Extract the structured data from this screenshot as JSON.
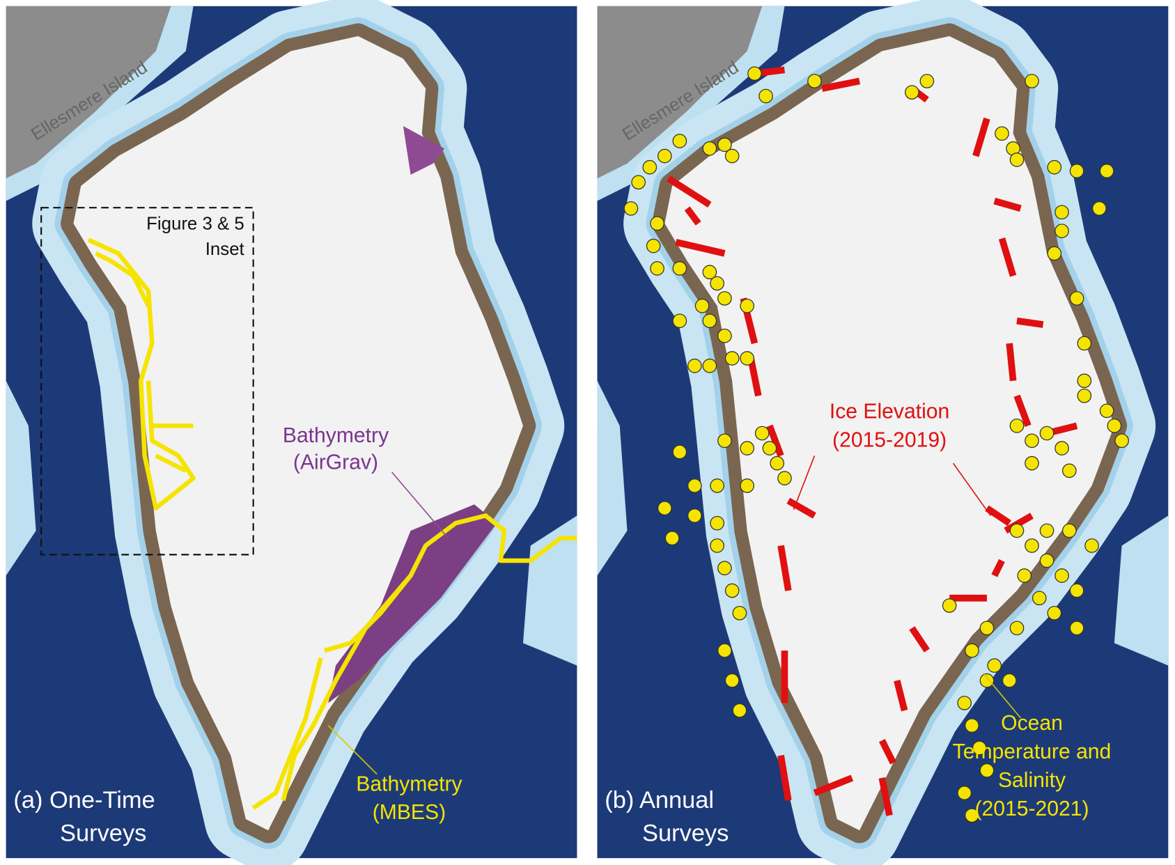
{
  "panel_a": {
    "label": [
      "(a) One-Time",
      "Surveys"
    ],
    "region": "Ellesmere Island",
    "inset": [
      "Figure 3 & 5",
      "Inset"
    ],
    "airgrav": [
      "Bathymetry",
      "(AirGrav)"
    ],
    "mbes": [
      "Bathymetry",
      "(MBES)"
    ]
  },
  "panel_b": {
    "label": [
      "(b) Annual",
      "Surveys"
    ],
    "region": "Ellesmere Island",
    "ice": [
      "Ice Elevation",
      "(2015-2019)"
    ],
    "ocean": [
      "Ocean",
      "Temperature and",
      "Salinity",
      "(2015-2021)"
    ]
  }
}
